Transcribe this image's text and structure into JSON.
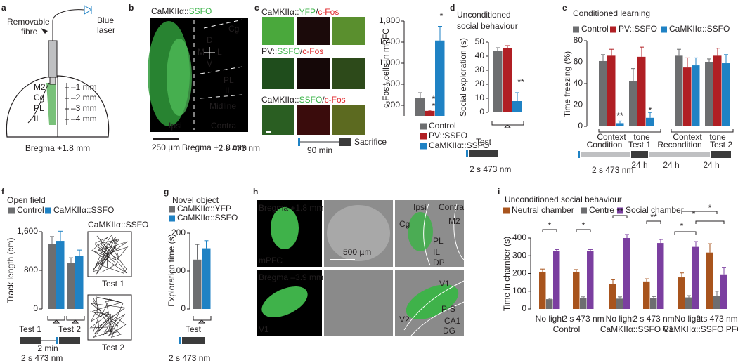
{
  "letters": [
    "a",
    "b",
    "c",
    "d",
    "e",
    "f",
    "g",
    "h",
    "i"
  ],
  "a": {
    "fibre": [
      "Removable",
      "fibre"
    ],
    "laser": [
      "Blue",
      "laser"
    ],
    "regions": [
      "M2",
      "Cg",
      "PL",
      "IL"
    ],
    "depths": [
      "–1 mm",
      "–2 mm",
      "–3 mm",
      "–4 mm"
    ],
    "bregma": "Bregma +1.8 mm"
  },
  "b": {
    "title": [
      "CaMKIIα::",
      "SSFO"
    ],
    "labels": [
      "Cg",
      "D",
      "M",
      "L",
      "V",
      "PL",
      "IL",
      "Midline",
      "Ipsi",
      "Contra"
    ],
    "scale": "250 µm",
    "bregma": "Bregma +1.8 mm"
  },
  "c": {
    "rows": [
      [
        "CaMKIIα::",
        "YFP",
        "/",
        "c-Fos"
      ],
      [
        "PV::",
        "SSFO",
        "/",
        "c-Fos"
      ],
      [
        "CaMKIIα::",
        "SSFO",
        "/",
        "c-Fos"
      ]
    ],
    "stim": "2 s 473 nm",
    "delay": "90 min",
    "end": "Sacrifice"
  },
  "d": {
    "title": [
      "Unconditioned",
      "social behaviour"
    ],
    "test": "Test",
    "stim": "2 s 473 nm"
  },
  "e": {
    "title": "Conditioned learning",
    "timeline": [
      "Condition",
      "Test 1",
      "Recondition",
      "Test 2"
    ],
    "intervals": [
      "24 h",
      "24 h",
      "24 h"
    ],
    "stim": "2 s 473 nm"
  },
  "f": {
    "title": "Open field",
    "track_title": "CaMKIIα::SSFO",
    "tracks": [
      "Test 1",
      "Test 2"
    ],
    "timeline": [
      "Test 1",
      "Test 2"
    ],
    "interval": "2 min",
    "stim": "2 s 473 nm"
  },
  "g": {
    "title": "Novel object",
    "test": "Test",
    "stim": "2 s 473 nm"
  },
  "h": {
    "rows": [
      {
        "bregma": "Bregma +1.8 mm",
        "region": "mPFC",
        "scale": "500 µm",
        "labels": [
          "Ipsi",
          "Contra",
          "Cg",
          "M2",
          "PL",
          "IL",
          "DP"
        ]
      },
      {
        "bregma": "Bregma –3.9 mm",
        "region": "V1",
        "labels": [
          "V1",
          "V2",
          "PrS",
          "CA1",
          "DG"
        ]
      }
    ]
  },
  "i": {
    "title": "Unconditioned social behaviour"
  },
  "chart_data": [
    {
      "type": "bar",
      "y_label": "c-Fos⁺ cells in mPFC",
      "categories": [
        null
      ],
      "series": [
        {
          "name": "Control",
          "color": "#6d6e70",
          "values": [
            340
          ],
          "errors": [
            100
          ]
        },
        {
          "name": "PV::SSFO",
          "color": "#b01f24",
          "values": [
            95
          ],
          "errors": [
            15
          ]
        },
        {
          "name": "CaMKIIα::SSFO",
          "color": "#1f82c4",
          "values": [
            1430
          ],
          "errors": [
            270
          ]
        }
      ],
      "ylim": [
        0,
        1800
      ],
      "yticks": [
        200,
        600,
        {
          "value": 1000,
          "label": "1,000"
        },
        {
          "value": 1400,
          "label": "1,400"
        },
        {
          "value": 1800,
          "label": "1,800"
        }
      ],
      "annotations": [
        "*",
        "*",
        "*"
      ]
    },
    {
      "type": "bar",
      "y_label": "Social exploration (s)",
      "categories": [
        null
      ],
      "series": [
        {
          "color": "#6d6e70",
          "values": [
            44
          ],
          "errors": [
            2
          ]
        },
        {
          "color": "#b01f24",
          "values": [
            46
          ],
          "errors": [
            1.5
          ]
        },
        {
          "color": "#1f82c4",
          "values": [
            8
          ],
          "errors": [
            6
          ]
        }
      ],
      "ylim": [
        0,
        50
      ],
      "yticks": [
        0,
        10,
        20,
        30,
        40,
        50
      ],
      "annotations": [
        "**"
      ]
    },
    {
      "type": "bar",
      "y_label": "Time freezing (%)",
      "categories": [
        "Context",
        "tone",
        "Context",
        "tone"
      ],
      "series": [
        {
          "name": "Control",
          "color": "#6d6e70",
          "values": [
            61,
            42,
            66,
            60
          ],
          "errors": [
            6,
            12,
            6,
            3
          ]
        },
        {
          "name": "PV::SSFO",
          "color": "#b01f24",
          "values": [
            66,
            65,
            55,
            66
          ],
          "errors": [
            6,
            9,
            9,
            7
          ]
        },
        {
          "name": "CaMKIIα::SSFO",
          "color": "#1f82c4",
          "values": [
            3,
            8,
            57,
            59
          ],
          "errors": [
            2,
            5,
            7,
            8
          ]
        }
      ],
      "ylim": [
        0,
        80
      ],
      "yticks": [
        0,
        20,
        40,
        60,
        80
      ],
      "annotations": [
        "**",
        "*"
      ]
    },
    {
      "type": "bar",
      "y_label": "Track length (cm)",
      "categories": [
        null,
        null
      ],
      "series": [
        {
          "name": "Control",
          "color": "#6d6e70",
          "values": [
            1350,
            960
          ],
          "errors": [
            150,
            100
          ]
        },
        {
          "name": "CaMKIIα::SSFO",
          "color": "#1f82c4",
          "values": [
            1410,
            1100
          ],
          "errors": [
            200,
            120
          ]
        }
      ],
      "ylim": [
        0,
        1600
      ],
      "yticks": [
        0,
        800,
        {
          "value": 1600,
          "label": "1,600"
        }
      ]
    },
    {
      "type": "bar",
      "y_label": "Exploration time (s)",
      "categories": [
        null
      ],
      "series": [
        {
          "name": "CaMKIIα::YFP",
          "color": "#6d6e70",
          "values": [
            130
          ],
          "errors": [
            40
          ]
        },
        {
          "name": "CaMKIIα::SSFO",
          "color": "#1f82c4",
          "values": [
            160
          ],
          "errors": [
            20
          ]
        }
      ],
      "ylim": [
        0,
        200
      ],
      "yticks": [
        0,
        100,
        200
      ]
    },
    {
      "type": "bar",
      "y_label": "Time in chamber (s)",
      "categories": [
        "No light",
        "2 s 473 nm",
        "No light",
        "2 s 473 nm",
        "No light",
        "2 s 473 nm"
      ],
      "group_labels": [
        "Control",
        "CaMKIIα::SSFO V1",
        "CaMKIIα::SSFO PFC"
      ],
      "series": [
        {
          "name": "Neutral chamber",
          "color": "#a8541d",
          "values": [
            210,
            210,
            140,
            155,
            178,
            318
          ],
          "errors": [
            15,
            12,
            25,
            15,
            25,
            50
          ]
        },
        {
          "name": "Centre",
          "color": "#6d6e70",
          "values": [
            55,
            60,
            58,
            60,
            65,
            75
          ],
          "errors": [
            5,
            8,
            10,
            10,
            10,
            25
          ]
        },
        {
          "name": "Social chamber",
          "color": "#7b3fa0",
          "values": [
            325,
            325,
            400,
            372,
            350,
            195
          ],
          "errors": [
            10,
            10,
            20,
            20,
            30,
            40
          ]
        }
      ],
      "ylim": [
        0,
        400
      ],
      "yticks": [
        0,
        100,
        200,
        300,
        400
      ],
      "annotations": [
        "*",
        "*",
        "**",
        "**",
        "*",
        "*",
        "*"
      ]
    }
  ]
}
